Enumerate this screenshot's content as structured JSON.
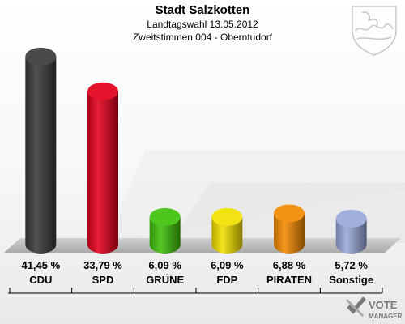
{
  "chart_data": {
    "type": "bar",
    "title": "Stadt Salzkotten",
    "subtitle_1": "Landtagswahl 13.05.2012",
    "subtitle_2": "Zweitstimmen 004 - Oberntudorf",
    "categories": [
      "CDU",
      "SPD",
      "GRÜNE",
      "FDP",
      "PIRATEN",
      "Sonstige"
    ],
    "values": [
      41.45,
      33.79,
      6.09,
      6.09,
      6.88,
      5.72
    ],
    "value_labels": [
      "41,45 %",
      "33,79 %",
      "6,09 %",
      "6,09 %",
      "6,88 %",
      "5,72 %"
    ],
    "colors": [
      "#3a3a3a",
      "#e3001b",
      "#3ec10a",
      "#f2e000",
      "#f28a00",
      "#98a8d8"
    ],
    "ylim": [
      0,
      45
    ],
    "grid": false,
    "legend": "none"
  },
  "watermark": {
    "line1": "VOTE",
    "line2": "MANAGER"
  }
}
